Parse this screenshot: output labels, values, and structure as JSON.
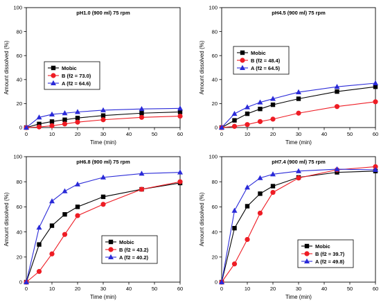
{
  "colors": {
    "mobic": "#000000",
    "b": "#ee1c24",
    "a": "#2a2ad8",
    "axis": "#000000"
  },
  "chart_data": [
    {
      "type": "line",
      "title": "pH1.0 (900 ml) 75 rpm",
      "xlabel": "Time (min)",
      "ylabel": "Amount dissolved (%)",
      "xlim": [
        0,
        60
      ],
      "ylim": [
        0,
        100
      ],
      "xticks": [
        0,
        10,
        20,
        30,
        40,
        50,
        60
      ],
      "yticks": [
        0,
        20,
        40,
        60,
        80,
        100
      ],
      "legend_position": "middle-left",
      "x": [
        0,
        5,
        10,
        15,
        20,
        30,
        45,
        60
      ],
      "series": [
        {
          "name": "Mobic",
          "marker": "square",
          "color": "#000000",
          "values": [
            0,
            3,
            5,
            6.5,
            8,
            10,
            12,
            13
          ]
        },
        {
          "name": "B (f2 = 73.0)",
          "marker": "circle",
          "color": "#ee1c24",
          "values": [
            0,
            0.5,
            1.5,
            3,
            4.5,
            6.5,
            8.5,
            9.5
          ]
        },
        {
          "name": "A (f2 = 64.6)",
          "marker": "triangle",
          "color": "#2a2ad8",
          "values": [
            0,
            8.5,
            11,
            12,
            13,
            14.5,
            15.5,
            16
          ]
        }
      ]
    },
    {
      "type": "line",
      "title": "pH4.5 (900 ml) 75 rpm",
      "xlabel": "Time (min)",
      "ylabel": "Amount dissolved (%)",
      "xlim": [
        0,
        60
      ],
      "ylim": [
        0,
        100
      ],
      "xticks": [
        0,
        10,
        20,
        30,
        40,
        50,
        60
      ],
      "yticks": [
        0,
        20,
        40,
        60,
        80,
        100
      ],
      "legend_position": "middle-left",
      "x": [
        0,
        5,
        10,
        15,
        20,
        30,
        45,
        60
      ],
      "series": [
        {
          "name": "Mobic",
          "marker": "square",
          "color": "#000000",
          "values": [
            0,
            6,
            11.5,
            15.5,
            19,
            24,
            30,
            34
          ]
        },
        {
          "name": "B (f2 = 48.4)",
          "marker": "circle",
          "color": "#ee1c24",
          "values": [
            0,
            1,
            2.5,
            5,
            7,
            12,
            17.5,
            21.5
          ]
        },
        {
          "name": "A (f2 = 64.5)",
          "marker": "triangle",
          "color": "#2a2ad8",
          "values": [
            0,
            11.5,
            17,
            21,
            24,
            29.5,
            34,
            37
          ]
        }
      ]
    },
    {
      "type": "line",
      "title": "pH6.8 (900 ml) 75 rpm",
      "xlabel": "Time (min)",
      "ylabel": "Amount dissolved (%)",
      "xlim": [
        0,
        60
      ],
      "ylim": [
        0,
        100
      ],
      "xticks": [
        0,
        10,
        20,
        30,
        40,
        50,
        60
      ],
      "yticks": [
        0,
        20,
        40,
        60,
        80,
        100
      ],
      "legend_position": "bottom-right",
      "x": [
        0,
        5,
        10,
        15,
        20,
        30,
        45,
        60
      ],
      "series": [
        {
          "name": "Mobic",
          "marker": "square",
          "color": "#000000",
          "values": [
            0,
            30,
            45,
            54,
            60,
            68,
            74,
            79
          ]
        },
        {
          "name": "B (f2 = 43.2)",
          "marker": "circle",
          "color": "#ee1c24",
          "values": [
            0,
            8.5,
            22.5,
            38,
            53,
            62,
            74,
            80
          ]
        },
        {
          "name": "A (f2 = 40.2)",
          "marker": "triangle",
          "color": "#2a2ad8",
          "values": [
            0,
            43.5,
            64.5,
            72.5,
            78,
            83.5,
            86.5,
            87.5
          ]
        }
      ]
    },
    {
      "type": "line",
      "title": "pH7.4 (900 ml) 75 rpm",
      "xlabel": "Time (min)",
      "ylabel": "Amount dissolved (%)",
      "xlim": [
        0,
        60
      ],
      "ylim": [
        0,
        100
      ],
      "xticks": [
        0,
        10,
        20,
        30,
        40,
        50,
        60
      ],
      "yticks": [
        0,
        20,
        40,
        60,
        80,
        100
      ],
      "legend_position": "bottom-right",
      "x": [
        0,
        5,
        10,
        15,
        20,
        30,
        45,
        60
      ],
      "series": [
        {
          "name": "Mobic",
          "marker": "square",
          "color": "#000000",
          "values": [
            0,
            43,
            60.5,
            70.5,
            76.5,
            83.5,
            87.5,
            88.5
          ]
        },
        {
          "name": "B (f2 = 39.7)",
          "marker": "circle",
          "color": "#ee1c24",
          "values": [
            0,
            14.5,
            34,
            55,
            71.5,
            83,
            89.5,
            92
          ]
        },
        {
          "name": "A (f2 = 49.8)",
          "marker": "triangle",
          "color": "#2a2ad8",
          "values": [
            0,
            57,
            75.5,
            83,
            86,
            88.5,
            90,
            89.5
          ]
        }
      ]
    }
  ]
}
